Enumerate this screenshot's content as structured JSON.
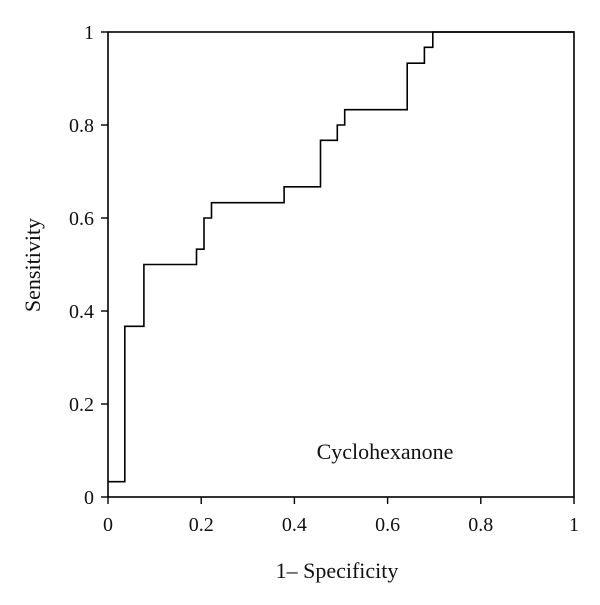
{
  "chart_data": {
    "type": "line",
    "title": "",
    "xlabel": "1– Specificity",
    "ylabel": "Sensitivity",
    "annotation": "Cyclohexanone",
    "xlim": [
      0,
      1
    ],
    "ylim": [
      0,
      1
    ],
    "xticks": [
      0,
      0.2,
      0.4,
      0.6,
      0.8,
      1
    ],
    "xtick_labels": [
      "0",
      "0.2",
      "0.4",
      "0.6",
      "0.8",
      "1"
    ],
    "yticks": [
      0,
      0.2,
      0.4,
      0.6,
      0.8,
      1
    ],
    "ytick_labels": [
      "0",
      "0.2",
      "0.4",
      "0.6",
      "0.8",
      "1"
    ],
    "grid": false,
    "colors": {
      "line": "#000000",
      "axis": "#000000",
      "background": "#ffffff"
    },
    "series": [
      {
        "name": "",
        "x": [
          0,
          0.036,
          0.036,
          0.036,
          0.077,
          0.077,
          0.19,
          0.19,
          0.206,
          0.206,
          0.222,
          0.222,
          0.378,
          0.378,
          0.456,
          0.456,
          0.492,
          0.492,
          0.508,
          0.508,
          0.642,
          0.642,
          0.679,
          0.679,
          0.697,
          0.697,
          1.0
        ],
        "y": [
          0.033,
          0.033,
          0.367,
          0.367,
          0.367,
          0.5,
          0.5,
          0.533,
          0.533,
          0.6,
          0.6,
          0.633,
          0.633,
          0.667,
          0.667,
          0.767,
          0.767,
          0.8,
          0.8,
          0.833,
          0.833,
          0.933,
          0.933,
          0.967,
          0.967,
          1.0,
          1.0
        ]
      }
    ]
  }
}
